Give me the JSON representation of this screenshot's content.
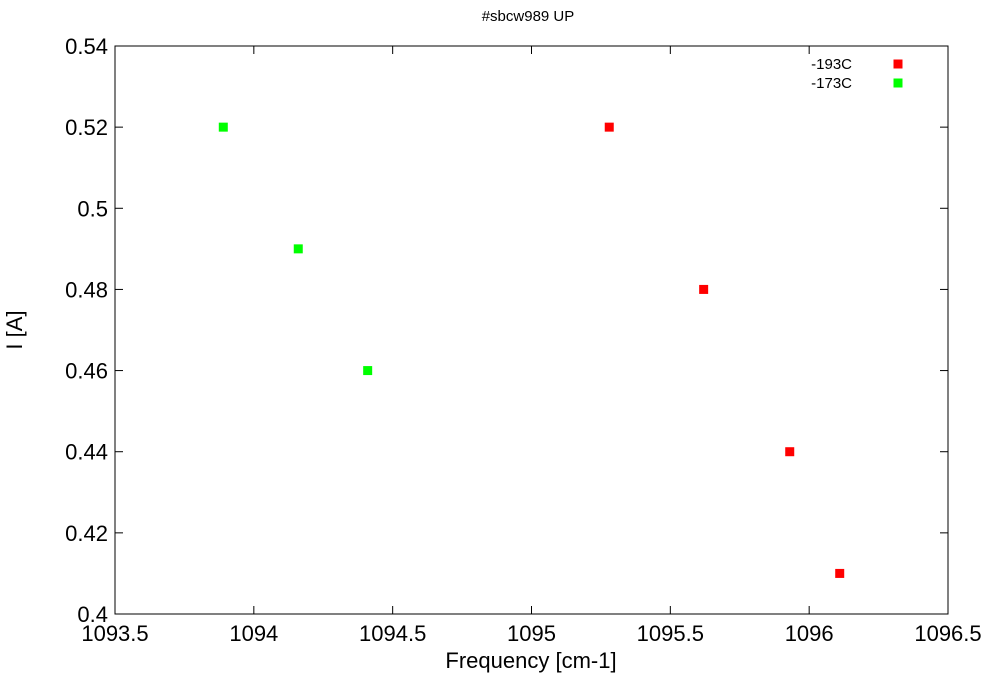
{
  "chart_data": {
    "type": "scatter",
    "title": "#sbcw989 UP",
    "xlabel": "Frequency [cm-1]",
    "ylabel": "I [A]",
    "xlim": [
      1093.5,
      1096.5
    ],
    "ylim": [
      0.4,
      0.54
    ],
    "xticks": [
      "1093.5",
      "1094",
      "1094.5",
      "1095",
      "1095.5",
      "1096",
      "1096.5"
    ],
    "yticks": [
      "0.4",
      "0.42",
      "0.44",
      "0.46",
      "0.48",
      "0.5",
      "0.52",
      "0.54"
    ],
    "grid": false,
    "legend_position": "top-right",
    "series": [
      {
        "name": "-193C",
        "color": "#ff0000",
        "marker": "square",
        "points": [
          {
            "x": 1095.28,
            "y": 0.52
          },
          {
            "x": 1095.62,
            "y": 0.48
          },
          {
            "x": 1095.93,
            "y": 0.44
          },
          {
            "x": 1096.11,
            "y": 0.41
          }
        ]
      },
      {
        "name": "-173C",
        "color": "#00ff00",
        "marker": "square",
        "points": [
          {
            "x": 1093.89,
            "y": 0.52
          },
          {
            "x": 1094.16,
            "y": 0.49
          },
          {
            "x": 1094.41,
            "y": 0.46
          }
        ]
      }
    ]
  }
}
